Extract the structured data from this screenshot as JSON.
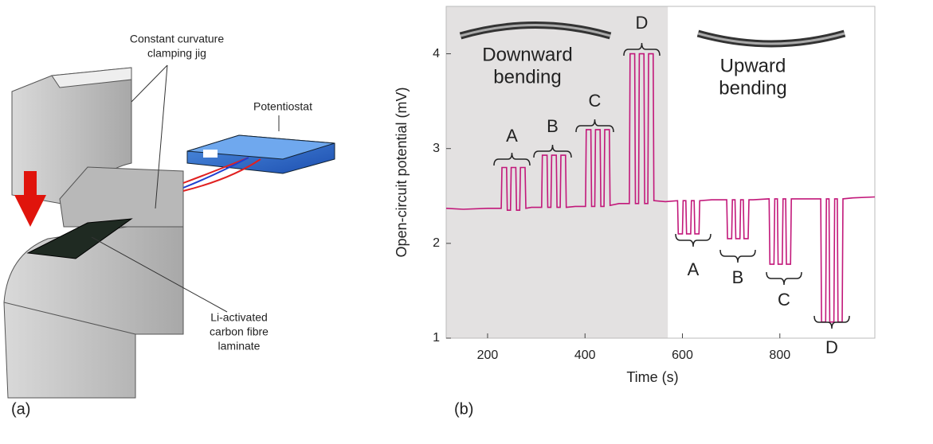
{
  "diagram": {
    "jig_label": [
      "Constant curvature",
      "clamping jig"
    ],
    "potentiostat_label": "Potentiostat",
    "laminate_label": [
      "Li-activated",
      "carbon fibre",
      "laminate"
    ],
    "panel_label": "(a)"
  },
  "panel_b_label": "(b)",
  "chart_data": {
    "type": "line",
    "xlabel": "Time (s)",
    "ylabel": "Open-circuit potential (mV)",
    "xlim": [
      115,
      995
    ],
    "ylim": [
      1,
      4.5
    ],
    "xticks": [
      200,
      400,
      600,
      800
    ],
    "yticks": [
      1,
      2,
      3,
      4
    ],
    "shaded_region": [
      115,
      570
    ],
    "region_labels": [
      [
        "Downward",
        "bending"
      ],
      [
        "Upward",
        "bending"
      ]
    ],
    "group_labels_down": [
      "A",
      "B",
      "C",
      "D"
    ],
    "group_labels_up": [
      "A",
      "B",
      "C",
      "D"
    ],
    "series": [
      {
        "name": "Open-circuit potential",
        "color": "#c2187a",
        "x": [
          115,
          150,
          200,
          228,
          229.5,
          239,
          240.5,
          247,
          248.5,
          258,
          259.5,
          266,
          267.5,
          277,
          278.5,
          290,
          311,
          312.5,
          322,
          323.5,
          330,
          331.5,
          341,
          342.5,
          349,
          350.5,
          360,
          361.5,
          380,
          401,
          402.5,
          412,
          413.5,
          420,
          421.5,
          431,
          432.5,
          439,
          440.5,
          450,
          451.5,
          470,
          491,
          492.5,
          502,
          503.5,
          510,
          511.5,
          521,
          522.5,
          529,
          530.5,
          540,
          541.5,
          565,
          590,
          591.5,
          600,
          601.5,
          607,
          608.5,
          617,
          618.5,
          624,
          625.5,
          634,
          635.5,
          660,
          691,
          692.5,
          701,
          702.5,
          708,
          709.5,
          718,
          719.5,
          725,
          726.5,
          735,
          736.5,
          745,
          778,
          779.5,
          788,
          789.5,
          795,
          796.5,
          805,
          806.5,
          812,
          813.5,
          822,
          823.5,
          850,
          884,
          885.5,
          894,
          895.5,
          901,
          902.5,
          911,
          912.5,
          918,
          919.5,
          928,
          929.5,
          950,
          995
        ],
        "values": [
          2.37,
          2.36,
          2.37,
          2.37,
          2.8,
          2.8,
          2.35,
          2.35,
          2.8,
          2.8,
          2.35,
          2.35,
          2.8,
          2.8,
          2.37,
          2.38,
          2.38,
          2.93,
          2.93,
          2.38,
          2.38,
          2.93,
          2.93,
          2.38,
          2.38,
          2.93,
          2.93,
          2.38,
          2.39,
          2.39,
          3.2,
          3.2,
          2.39,
          2.39,
          3.2,
          3.2,
          2.39,
          2.39,
          3.2,
          3.2,
          2.4,
          2.42,
          2.42,
          4.0,
          4.0,
          2.42,
          2.42,
          4.0,
          4.0,
          2.42,
          2.42,
          4.0,
          4.0,
          2.45,
          2.44,
          2.45,
          2.1,
          2.1,
          2.45,
          2.45,
          2.1,
          2.1,
          2.45,
          2.45,
          2.1,
          2.1,
          2.45,
          2.46,
          2.46,
          2.05,
          2.05,
          2.46,
          2.46,
          2.05,
          2.05,
          2.46,
          2.46,
          2.05,
          2.05,
          2.46,
          2.46,
          2.47,
          1.78,
          1.78,
          2.47,
          2.47,
          1.78,
          1.78,
          2.47,
          2.47,
          1.78,
          1.78,
          2.47,
          2.47,
          2.47,
          1.17,
          1.17,
          2.47,
          2.47,
          1.17,
          1.17,
          2.47,
          2.47,
          1.17,
          1.17,
          2.47,
          2.48,
          2.49
        ]
      }
    ]
  }
}
